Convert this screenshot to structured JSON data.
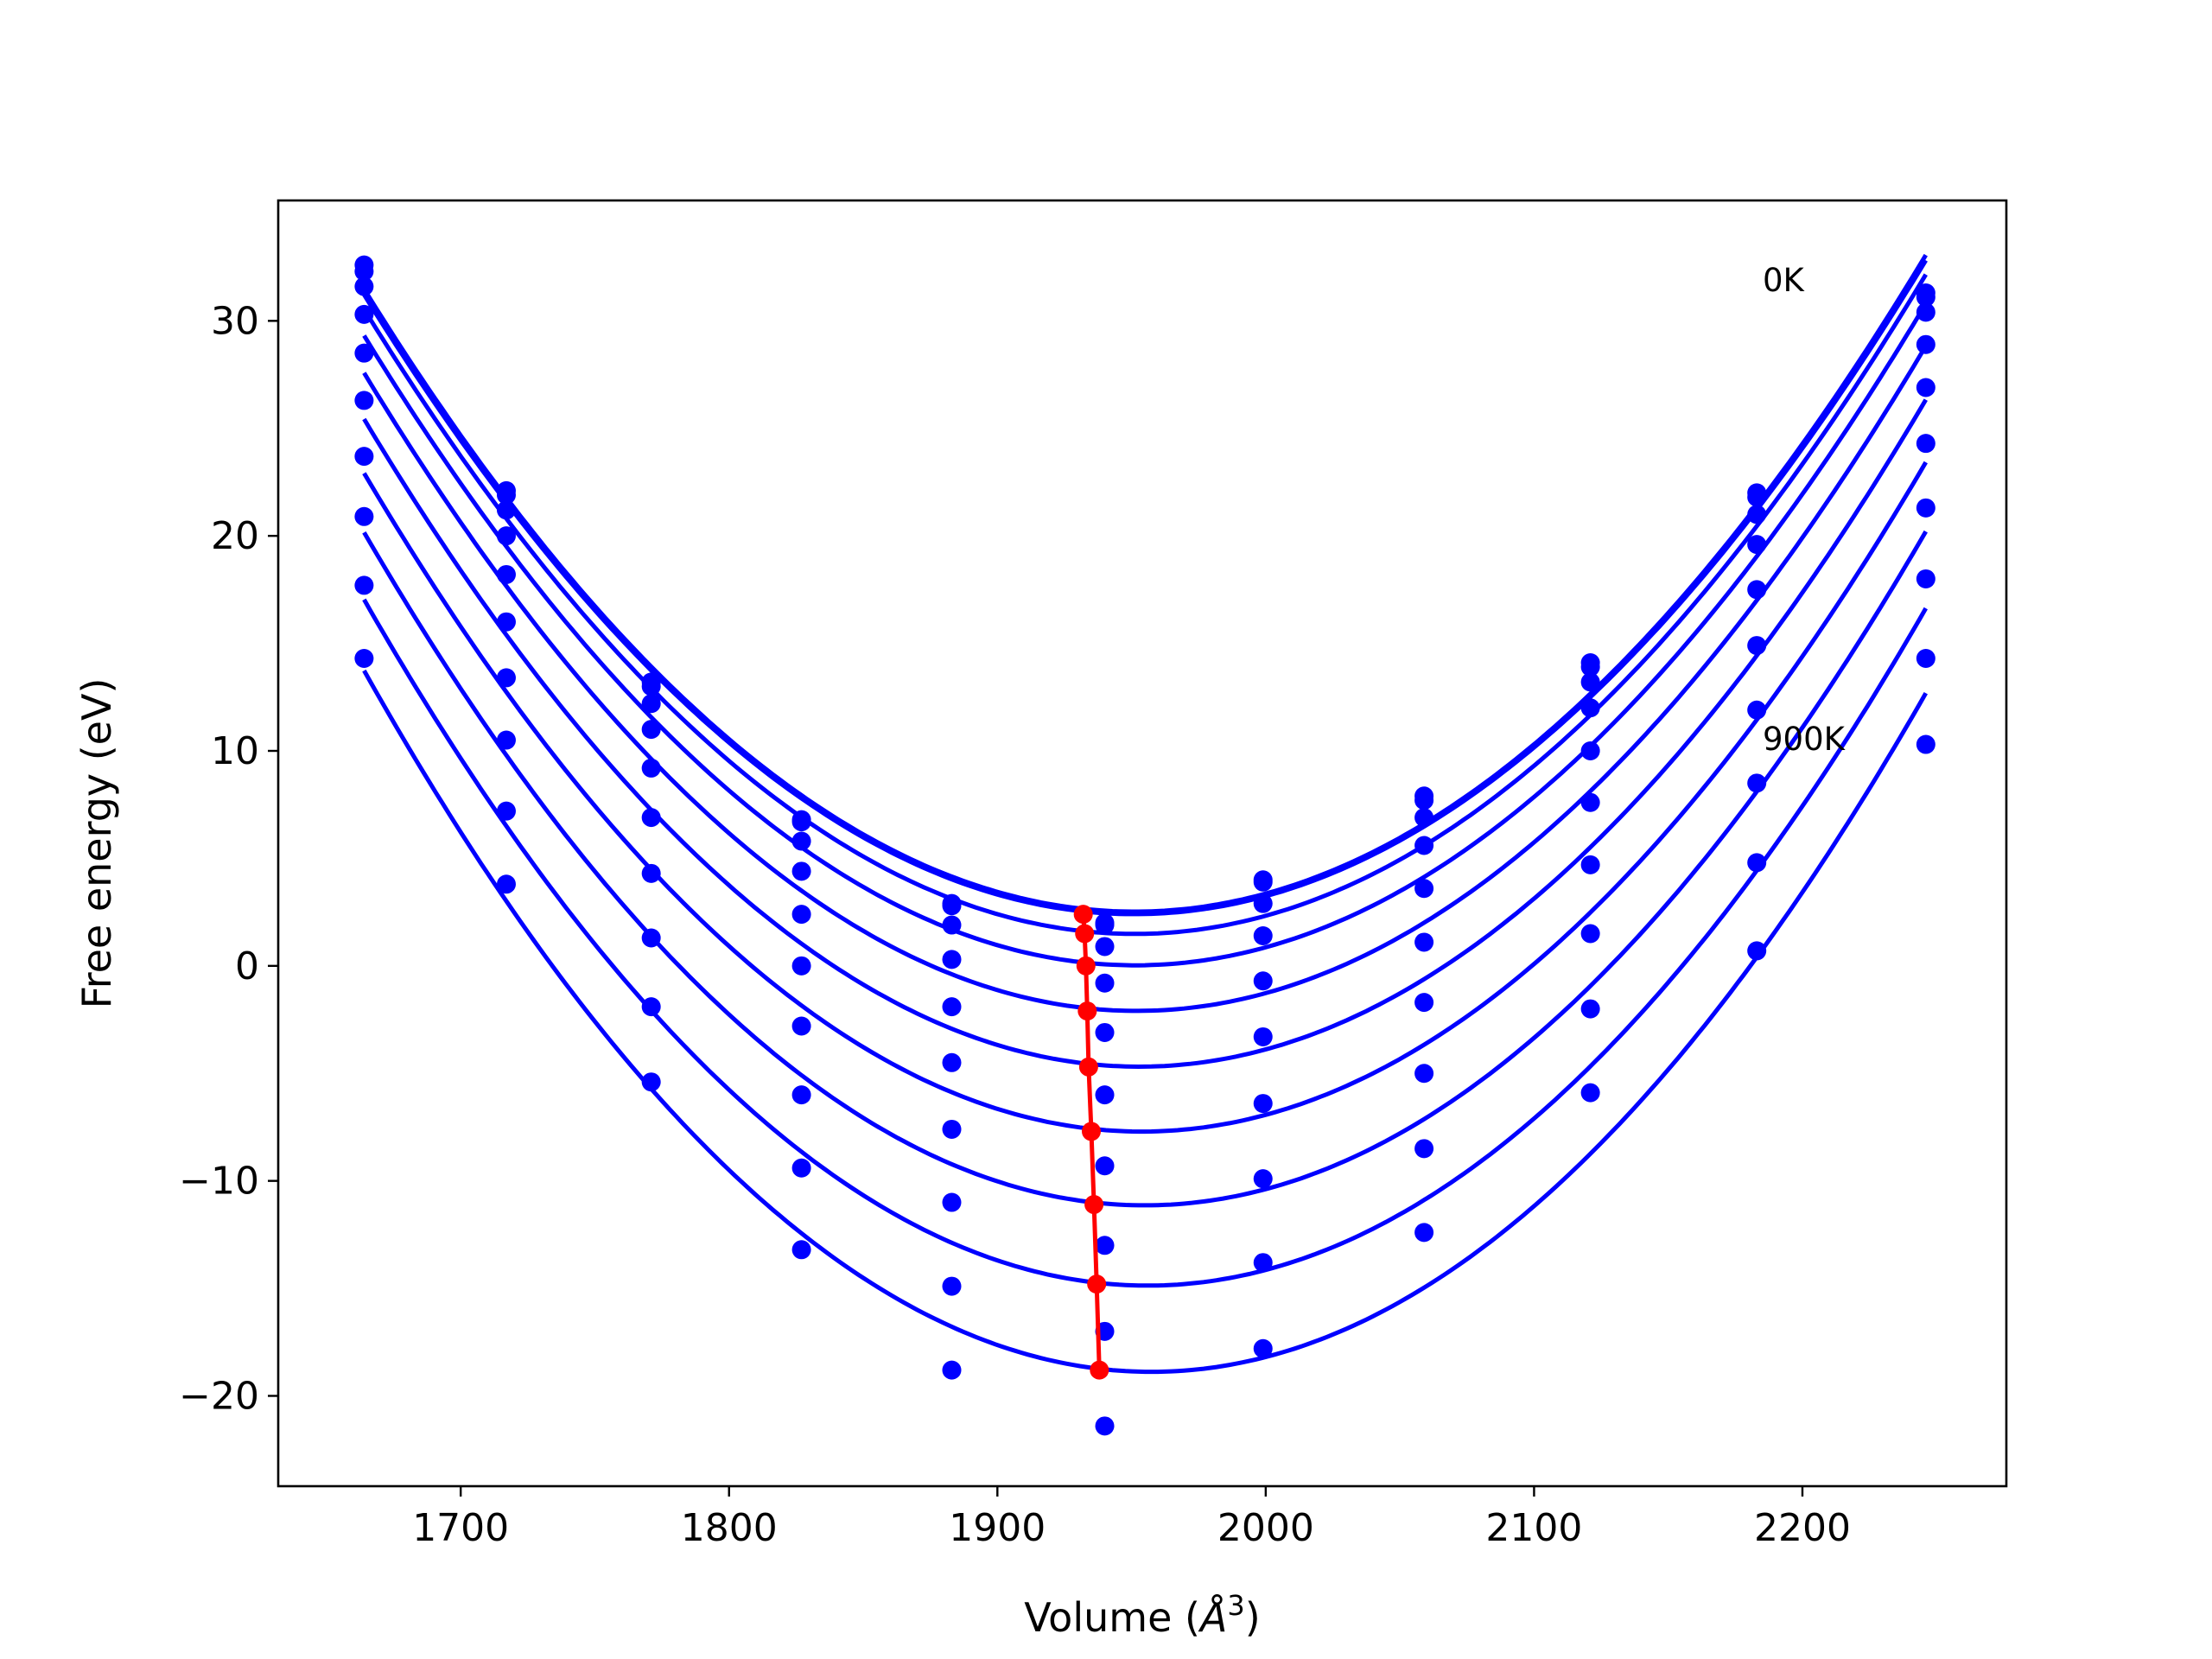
{
  "chart_data": {
    "type": "line",
    "title": "",
    "xlabel": "Volume ($\\AA^3$)",
    "xlabel_parts": [
      "Volume (",
      "Å",
      "3",
      ")"
    ],
    "ylabel": "Free energy (eV)",
    "xlim": [
      1632,
      2276
    ],
    "ylim": [
      -24.2,
      35.6
    ],
    "xticks": [
      1700,
      1800,
      1900,
      2000,
      2100,
      2200
    ],
    "yticks": [
      -20,
      -10,
      0,
      10,
      20,
      30
    ],
    "ytick_labels": [
      "−20",
      "−10",
      "0",
      "10",
      "20",
      "30"
    ],
    "grid": false,
    "legend": "none",
    "colors": {
      "curves": "#0000ff",
      "minima": "#ff0000"
    },
    "volumes": [
      1664,
      1717,
      1771,
      1827,
      1883,
      1940,
      1999,
      2059,
      2121,
      2183,
      2246
    ],
    "series": [
      {
        "label": "0K",
        "values": [
          32.6,
          22.1,
          13.2,
          6.8,
          2.9,
          2.0,
          4.0,
          7.9,
          14.1,
          22.0,
          31.3
        ]
      },
      {
        "values": [
          32.3,
          21.9,
          13.0,
          6.7,
          2.8,
          1.9,
          3.9,
          7.7,
          13.9,
          21.8,
          31.1
        ]
      },
      {
        "values": [
          31.6,
          21.2,
          12.2,
          5.8,
          1.9,
          0.9,
          2.9,
          6.9,
          13.2,
          21.0,
          30.4
        ]
      },
      {
        "values": [
          30.3,
          20.0,
          11.0,
          4.4,
          0.3,
          -0.8,
          1.4,
          5.6,
          12.0,
          19.6,
          28.9
        ]
      },
      {
        "values": [
          28.5,
          18.2,
          9.2,
          2.4,
          -1.9,
          -3.1,
          -0.7,
          3.6,
          10.0,
          17.5,
          26.9
        ]
      },
      {
        "values": [
          26.3,
          16.0,
          6.9,
          0.0,
          -4.5,
          -6.0,
          -3.3,
          1.1,
          7.6,
          14.9,
          24.3
        ]
      },
      {
        "values": [
          23.7,
          13.4,
          4.3,
          -2.8,
          -7.6,
          -9.3,
          -6.4,
          -1.7,
          4.7,
          11.9,
          21.3
        ]
      },
      {
        "values": [
          20.9,
          10.5,
          1.3,
          -6.0,
          -11.0,
          -13.0,
          -9.9,
          -5.0,
          1.5,
          8.5,
          18.0
        ]
      },
      {
        "label": "900K",
        "values": [
          17.7,
          7.2,
          -1.9,
          -9.4,
          -14.9,
          -17.0,
          -13.8,
          -8.5,
          -2.0,
          4.8,
          14.3
        ]
      },
      {
        "values": [
          14.3,
          3.8,
          -5.4,
          -13.2,
          -18.8,
          -21.4,
          -17.8,
          -12.4,
          -5.9,
          0.7,
          10.3
        ]
      }
    ],
    "minima": [
      {
        "x": 1932,
        "y": 2.4
      },
      {
        "x": 1932.5,
        "y": 1.5
      },
      {
        "x": 1933,
        "y": 0.0
      },
      {
        "x": 1933.5,
        "y": -2.1
      },
      {
        "x": 1934,
        "y": -4.7
      },
      {
        "x": 1935,
        "y": -7.7
      },
      {
        "x": 1936,
        "y": -11.1
      },
      {
        "x": 1937,
        "y": -14.8
      },
      {
        "x": 1938,
        "y": -18.8
      }
    ]
  }
}
